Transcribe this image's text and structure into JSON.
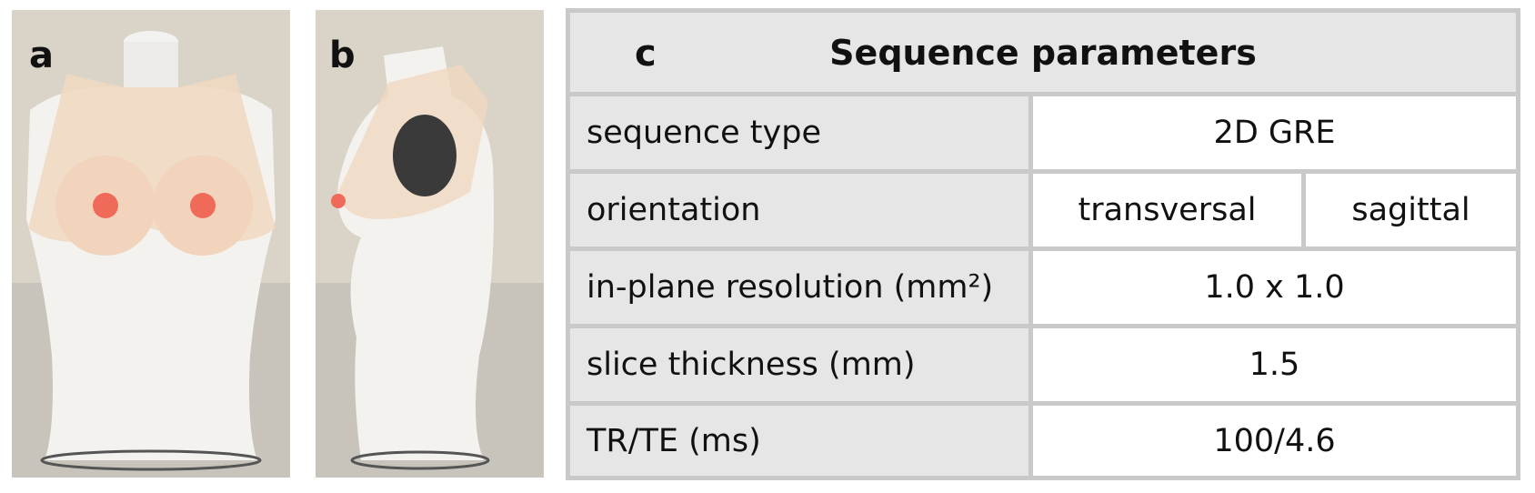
{
  "panels": [
    "a",
    "b",
    "c"
  ],
  "table": {
    "title": "Sequence parameters",
    "rows": [
      [
        "sequence type",
        "2D GRE"
      ],
      [
        "orientation",
        "transversal",
        "sagittal"
      ],
      [
        "in-plane resolution (mm²)",
        "1.0 x 1.0"
      ],
      [
        "slice thickness (mm)",
        "1.5"
      ],
      [
        "TR/TE (ms)",
        "100/4.6"
      ]
    ]
  }
}
